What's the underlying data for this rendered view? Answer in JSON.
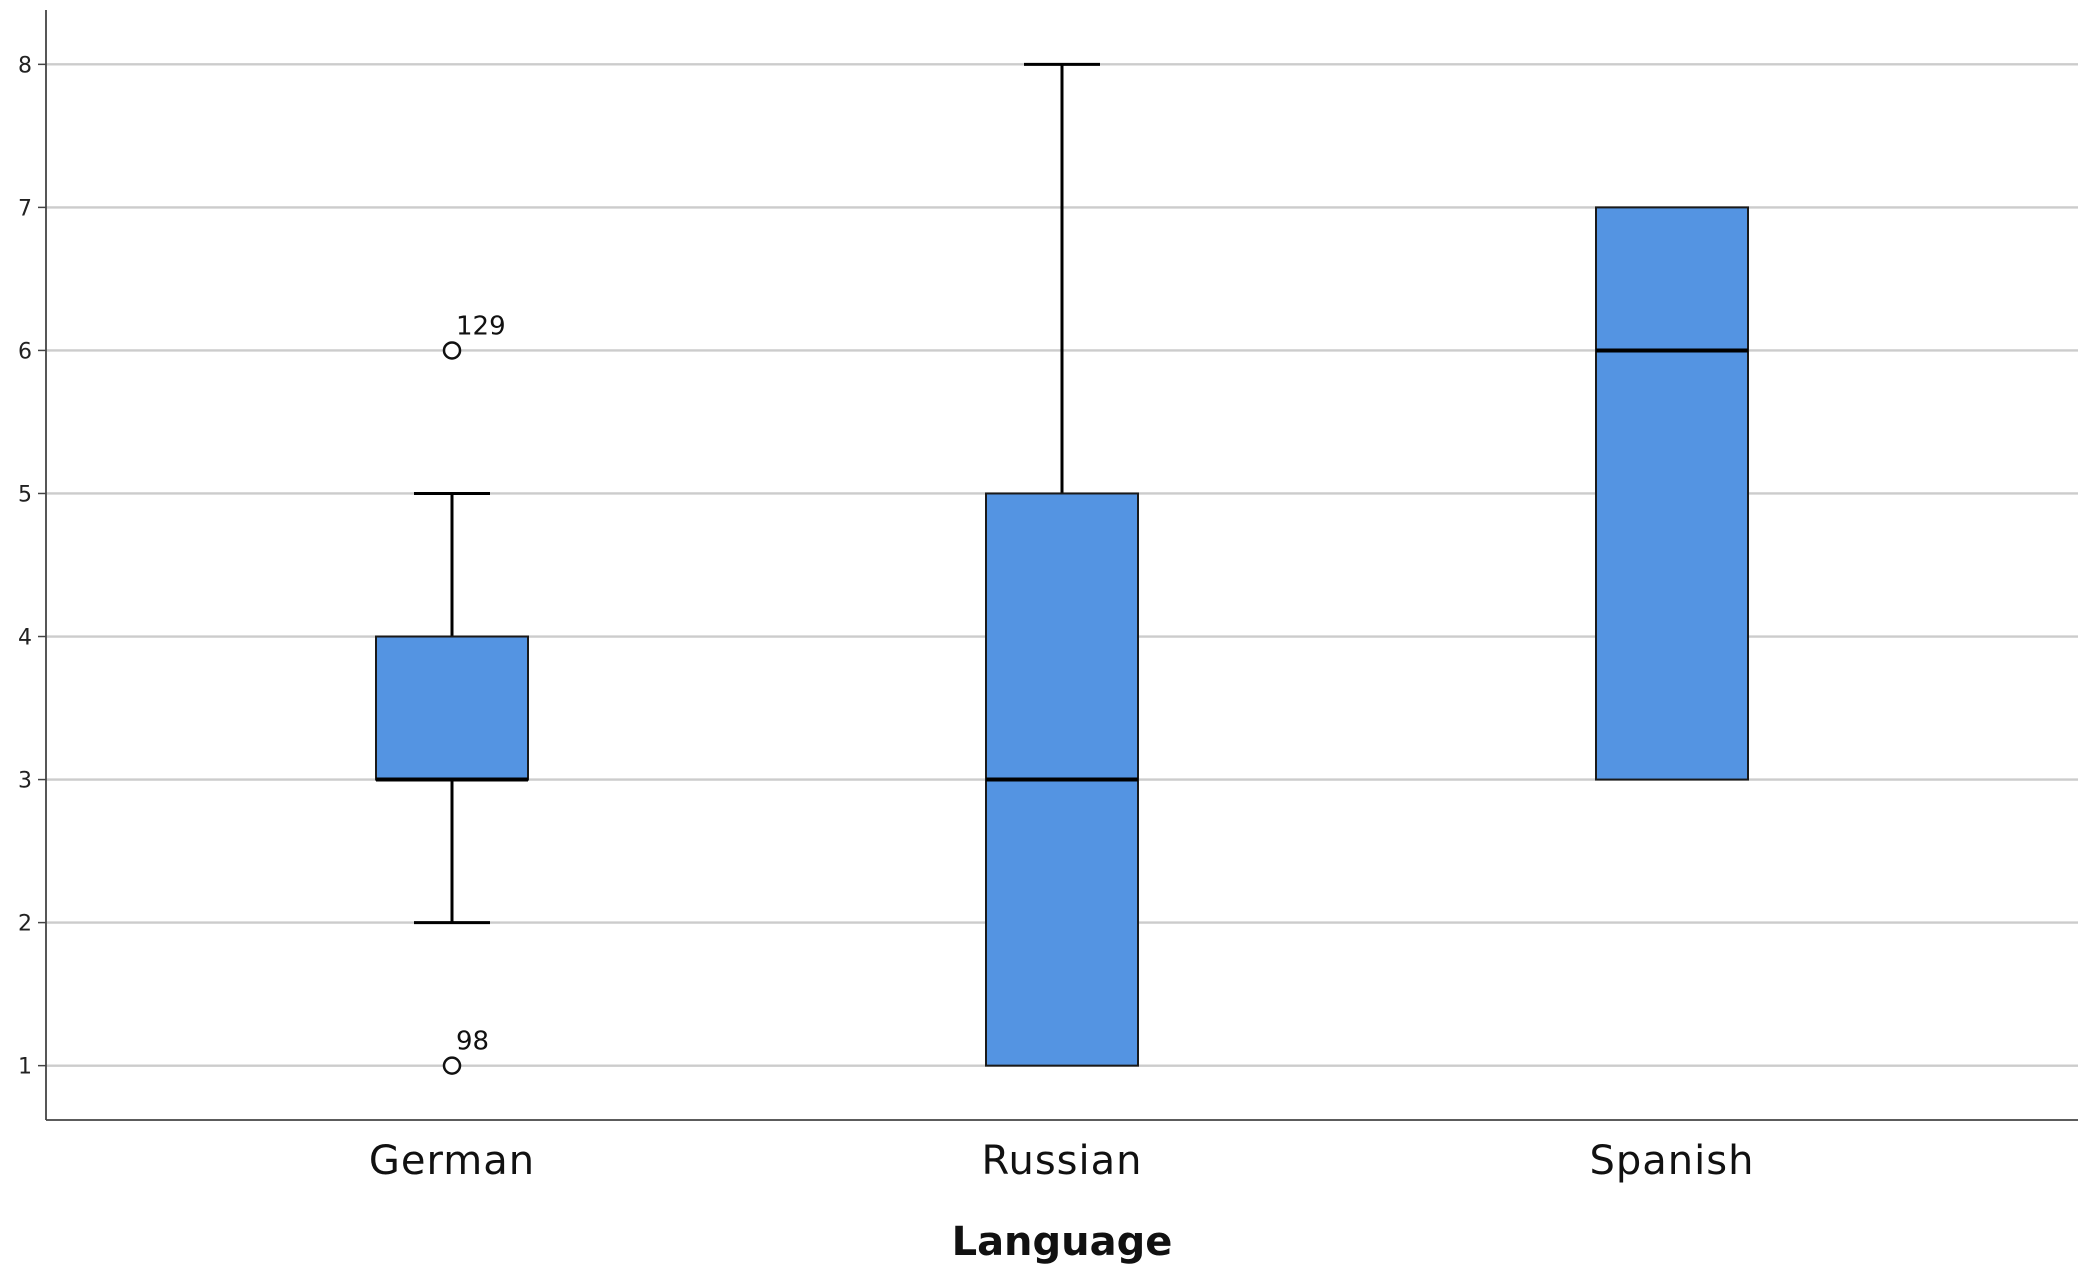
{
  "chart_data": {
    "type": "box",
    "xlabel": "Language",
    "ylabel": "",
    "ylim": [
      0.62,
      8.38
    ],
    "y_ticks": [
      1,
      2,
      3,
      4,
      5,
      6,
      7,
      8
    ],
    "grid": true,
    "categories": [
      "German",
      "Russian",
      "Spanish"
    ],
    "boxes": [
      {
        "category": "German",
        "whisker_low": 2,
        "q1": 3,
        "median": 3,
        "q3": 4,
        "whisker_high": 5,
        "outliers": [
          {
            "value": 6,
            "label": "129"
          },
          {
            "value": 1,
            "label": "98"
          }
        ]
      },
      {
        "category": "Russian",
        "whisker_low": 1,
        "q1": 1,
        "median": 3,
        "q3": 5,
        "whisker_high": 8,
        "outliers": []
      },
      {
        "category": "Spanish",
        "whisker_low": 3,
        "q1": 3,
        "median": 6,
        "q3": 7,
        "whisker_high": 7,
        "outliers": []
      }
    ],
    "colors": {
      "box_fill": "#5494E2",
      "box_stroke": "#1a1a1a",
      "grid": "#cccccc",
      "axis": "#444444"
    }
  }
}
